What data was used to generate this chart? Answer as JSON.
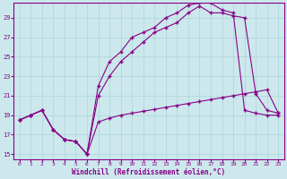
{
  "xlabel": "Windchill (Refroidissement éolien,°C)",
  "bg_color": "#cce8ec",
  "grid_color": "#aad4d8",
  "line_color": "#880088",
  "line1_x": [
    0,
    1,
    2,
    3,
    4,
    5,
    6,
    7,
    8,
    9,
    10,
    11,
    12,
    13,
    14,
    15,
    16,
    17,
    18,
    19,
    20,
    21,
    22,
    23
  ],
  "line1_y": [
    18.5,
    19.0,
    19.5,
    17.5,
    16.5,
    16.3,
    15.0,
    18.3,
    18.7,
    19.0,
    19.2,
    19.4,
    19.6,
    19.8,
    20.0,
    20.2,
    20.4,
    20.6,
    20.8,
    21.0,
    21.2,
    21.4,
    21.6,
    19.2
  ],
  "line2_x": [
    0,
    1,
    2,
    3,
    4,
    5,
    6,
    7,
    8,
    9,
    10,
    11,
    12,
    13,
    14,
    15,
    16,
    17,
    18,
    19,
    20,
    21,
    22,
    23
  ],
  "line2_y": [
    18.5,
    19.0,
    19.5,
    17.5,
    16.5,
    16.3,
    15.0,
    21.0,
    23.0,
    24.5,
    25.5,
    26.5,
    27.5,
    28.0,
    28.5,
    29.5,
    30.2,
    29.5,
    29.5,
    29.2,
    29.0,
    21.2,
    19.5,
    19.2
  ],
  "line3_x": [
    0,
    1,
    2,
    3,
    4,
    5,
    6,
    7,
    8,
    9,
    10,
    11,
    12,
    13,
    14,
    15,
    16,
    17,
    18,
    19,
    20,
    21,
    22,
    23
  ],
  "line3_y": [
    18.5,
    19.0,
    19.5,
    17.5,
    16.5,
    16.3,
    15.0,
    22.0,
    24.5,
    25.5,
    27.0,
    27.5,
    28.0,
    29.0,
    29.5,
    30.3,
    30.5,
    30.5,
    29.8,
    29.5,
    19.5,
    19.2,
    19.0,
    19.0
  ],
  "xlim": [
    -0.5,
    23.5
  ],
  "ylim": [
    14.5,
    30.5
  ],
  "yticks": [
    15,
    17,
    19,
    21,
    23,
    25,
    27,
    29
  ],
  "xticks": [
    0,
    1,
    2,
    3,
    4,
    5,
    6,
    7,
    8,
    9,
    10,
    11,
    12,
    13,
    14,
    15,
    16,
    17,
    18,
    19,
    20,
    21,
    22,
    23
  ]
}
